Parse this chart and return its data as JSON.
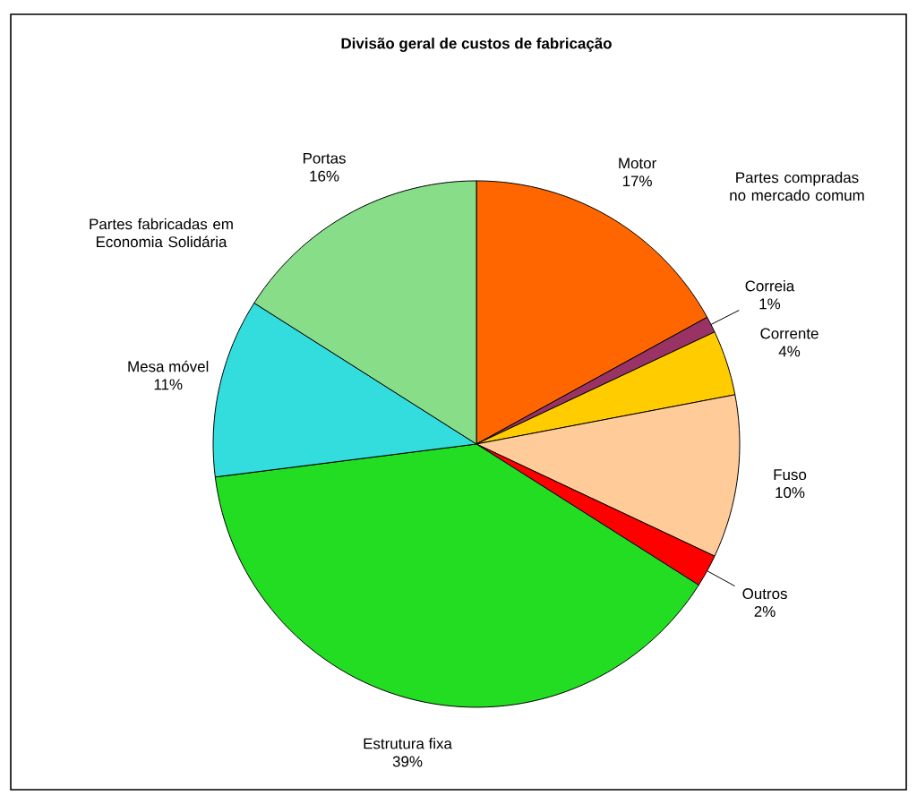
{
  "chart_data": {
    "type": "pie",
    "title": "Divisão geral de custos de fabricação",
    "categories": [
      "Motor",
      "Correia",
      "Corrente",
      "Fuso",
      "Outros",
      "Estrutura fixa",
      "Mesa móvel",
      "Portas"
    ],
    "values": [
      17,
      1,
      4,
      10,
      2,
      39,
      11,
      16
    ],
    "value_labels": [
      "17%",
      "1%",
      "4%",
      "10%",
      "2%",
      "39%",
      "11%",
      "16%"
    ],
    "colors": [
      "#ff6600",
      "#993366",
      "#ffcc00",
      "#ffcc99",
      "#ff0000",
      "#22dd22",
      "#33dddd",
      "#88dd88"
    ],
    "annotations": [
      "Partes compradas no mercado comum",
      "Partes fabricadas em Economia Solidária"
    ]
  }
}
